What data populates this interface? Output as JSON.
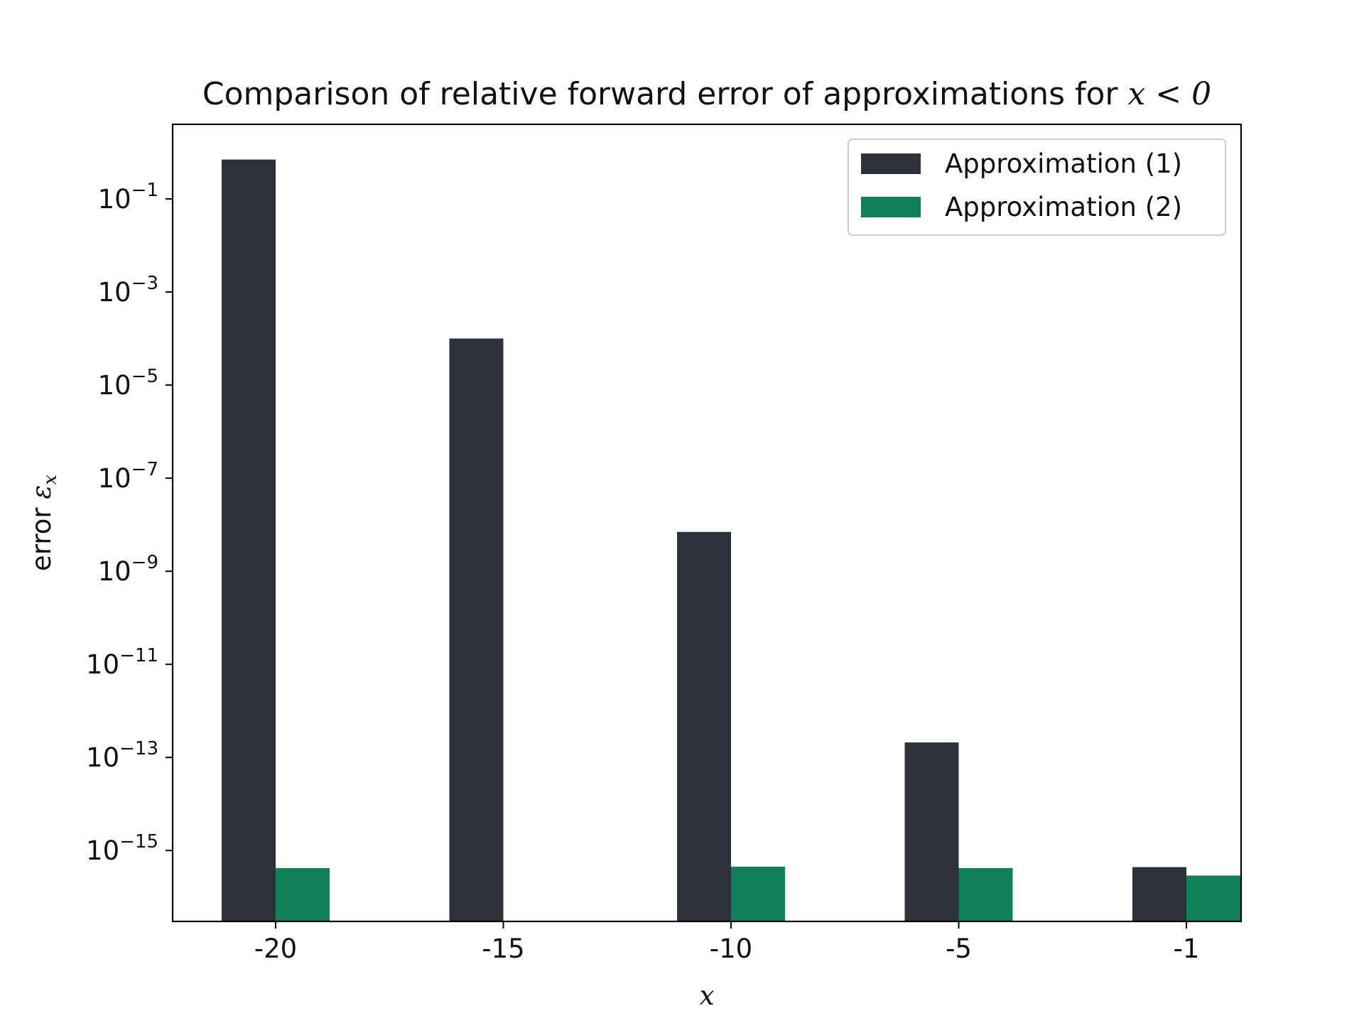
{
  "chart_data": {
    "type": "bar",
    "title": "Comparison of relative forward error of approximations for",
    "title_math": "x < 0",
    "xlabel": "x",
    "ylabel": "error",
    "ylabel_math": "ε",
    "ylabel_math_sub": "x",
    "yscale": "log",
    "ylim": [
      3e-17,
      4
    ],
    "categories": [
      "-20",
      "-15",
      "-10",
      "-5",
      "-1"
    ],
    "yticks": [
      {
        "base": "10",
        "exp": "−1",
        "value": 0.1
      },
      {
        "base": "10",
        "exp": "−3",
        "value": 0.001
      },
      {
        "base": "10",
        "exp": "−5",
        "value": 1e-05
      },
      {
        "base": "10",
        "exp": "−7",
        "value": 1e-07
      },
      {
        "base": "10",
        "exp": "−9",
        "value": 1e-09
      },
      {
        "base": "10",
        "exp": "−11",
        "value": 1e-11
      },
      {
        "base": "10",
        "exp": "−13",
        "value": 1e-13
      },
      {
        "base": "10",
        "exp": "−15",
        "value": 1e-15
      }
    ],
    "series": [
      {
        "name": "Approximation (1)",
        "color": "#2c313c",
        "values": [
          0.7,
          0.0001,
          7e-09,
          2.1e-13,
          4.4e-16
        ]
      },
      {
        "name": "Approximation (2)",
        "color": "#11815a",
        "values": [
          4.2e-16,
          null,
          4.5e-16,
          4.2e-16,
          2.9e-16
        ]
      }
    ],
    "legend_position": "top-right",
    "grid": false
  }
}
